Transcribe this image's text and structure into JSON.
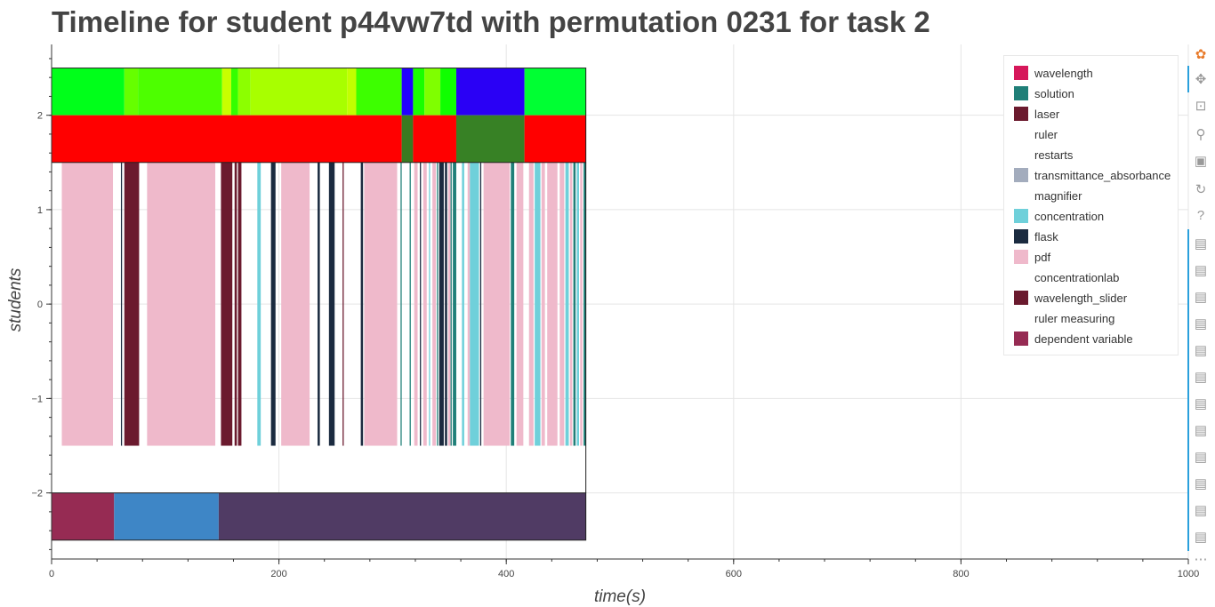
{
  "chart_data": {
    "type": "timeline",
    "title": "Timeline for student p44vw7td with permutation 0231 for task 2",
    "xlabel": "time(s)",
    "ylabel": "students",
    "xlim": [
      0,
      1000
    ],
    "ylim": [
      -2.7,
      2.75
    ],
    "x_ticks": [
      0,
      200,
      400,
      600,
      800,
      1000
    ],
    "y_ticks": [
      -2,
      -1,
      0,
      1,
      2
    ],
    "y_tick_labels": [
      "−2",
      "−1",
      "0",
      "1",
      "2"
    ],
    "legend": [
      {
        "name": "wavelength",
        "color": "#d6175a"
      },
      {
        "name": "solution",
        "color": "#207f78"
      },
      {
        "name": "laser",
        "color": "#6b1a2e"
      },
      {
        "name": "ruler",
        "color": ""
      },
      {
        "name": "restarts",
        "color": ""
      },
      {
        "name": "transmittance_absorbance",
        "color": "#a3acbd"
      },
      {
        "name": "magnifier",
        "color": ""
      },
      {
        "name": "concentration",
        "color": "#6fd0da"
      },
      {
        "name": "flask",
        "color": "#1b2b40"
      },
      {
        "name": "pdf",
        "color": "#efb9cb"
      },
      {
        "name": "concentrationlab",
        "color": ""
      },
      {
        "name": "wavelength_slider",
        "color": "#6a1a2e"
      },
      {
        "name": "ruler measuring",
        "color": ""
      },
      {
        "name": "dependent variable",
        "color": "#962b53"
      }
    ],
    "rows": [
      {
        "y0": 2.0,
        "y1": 2.5,
        "segments": [
          {
            "x0": 0,
            "x1": 64,
            "color": "#00ff1a"
          },
          {
            "x0": 64,
            "x1": 76,
            "color": "#66ff00"
          },
          {
            "x0": 76,
            "x1": 150,
            "color": "#4dff00"
          },
          {
            "x0": 150,
            "x1": 158,
            "color": "#c8ff00"
          },
          {
            "x0": 158,
            "x1": 164,
            "color": "#33ff00"
          },
          {
            "x0": 164,
            "x1": 175,
            "color": "#8cff00"
          },
          {
            "x0": 175,
            "x1": 260,
            "color": "#a8ff00"
          },
          {
            "x0": 260,
            "x1": 268,
            "color": "#c2ff00"
          },
          {
            "x0": 268,
            "x1": 308,
            "color": "#3dff00"
          },
          {
            "x0": 308,
            "x1": 318,
            "color": "#2200ff"
          },
          {
            "x0": 318,
            "x1": 328,
            "color": "#19ff00"
          },
          {
            "x0": 328,
            "x1": 342,
            "color": "#7fff00"
          },
          {
            "x0": 342,
            "x1": 356,
            "color": "#10ff00"
          },
          {
            "x0": 356,
            "x1": 416,
            "color": "#2a00f5"
          },
          {
            "x0": 416,
            "x1": 470,
            "color": "#00ff33"
          }
        ]
      },
      {
        "y0": 1.5,
        "y1": 2.0,
        "segments": [
          {
            "x0": 0,
            "x1": 308,
            "color": "#ff0000"
          },
          {
            "x0": 308,
            "x1": 318,
            "color": "#3a7a20"
          },
          {
            "x0": 318,
            "x1": 356,
            "color": "#ff0000"
          },
          {
            "x0": 356,
            "x1": 416,
            "color": "#378125"
          },
          {
            "x0": 416,
            "x1": 470,
            "color": "#ff0000"
          }
        ]
      },
      {
        "y0": -1.5,
        "y1": 1.5,
        "segments": [
          {
            "x0": 9,
            "x1": 54,
            "color": "#efb9cb"
          },
          {
            "x0": 61,
            "x1": 62,
            "color": "#1b2b40"
          },
          {
            "x0": 64,
            "x1": 77,
            "color": "#6b1a2e"
          },
          {
            "x0": 84,
            "x1": 144,
            "color": "#efb9cb"
          },
          {
            "x0": 149,
            "x1": 159,
            "color": "#6b1a2e"
          },
          {
            "x0": 161,
            "x1": 163,
            "color": "#6b1a2e"
          },
          {
            "x0": 164,
            "x1": 167,
            "color": "#6b1a2e"
          },
          {
            "x0": 181,
            "x1": 184,
            "color": "#6fd0da"
          },
          {
            "x0": 193,
            "x1": 197,
            "color": "#1b2b40"
          },
          {
            "x0": 202,
            "x1": 227,
            "color": "#efb9cb"
          },
          {
            "x0": 234,
            "x1": 236,
            "color": "#1b2b40"
          },
          {
            "x0": 244,
            "x1": 249,
            "color": "#1b2b40"
          },
          {
            "x0": 256,
            "x1": 257,
            "color": "#6b1a2e"
          },
          {
            "x0": 272,
            "x1": 274,
            "color": "#1b2b40"
          },
          {
            "x0": 275,
            "x1": 276,
            "color": "#6fd0da"
          },
          {
            "x0": 275,
            "x1": 304,
            "color": "#efb9cb"
          },
          {
            "x0": 307,
            "x1": 308,
            "color": "#207f78"
          },
          {
            "x0": 315,
            "x1": 316,
            "color": "#207f78"
          },
          {
            "x0": 319,
            "x1": 322,
            "color": "#efb9cb"
          },
          {
            "x0": 324,
            "x1": 325,
            "color": "#1b2b40"
          },
          {
            "x0": 327,
            "x1": 330,
            "color": "#efb9cb"
          },
          {
            "x0": 332,
            "x1": 333,
            "color": "#6fd0da"
          },
          {
            "x0": 335,
            "x1": 338,
            "color": "#efb9cb"
          },
          {
            "x0": 339,
            "x1": 340,
            "color": "#207f78"
          },
          {
            "x0": 341,
            "x1": 345,
            "color": "#1b2b40"
          },
          {
            "x0": 346,
            "x1": 348,
            "color": "#1b2b40"
          },
          {
            "x0": 349,
            "x1": 351,
            "color": "#efb9cb"
          },
          {
            "x0": 351,
            "x1": 352,
            "color": "#207f78"
          },
          {
            "x0": 353,
            "x1": 356,
            "color": "#207f78"
          },
          {
            "x0": 361,
            "x1": 363,
            "color": "#6fd0da"
          },
          {
            "x0": 366,
            "x1": 368,
            "color": "#efb9cb"
          },
          {
            "x0": 368,
            "x1": 376,
            "color": "#6fd0da"
          },
          {
            "x0": 377,
            "x1": 378,
            "color": "#1b2b40"
          },
          {
            "x0": 380,
            "x1": 403,
            "color": "#efb9cb"
          },
          {
            "x0": 404,
            "x1": 407,
            "color": "#207f78"
          },
          {
            "x0": 409,
            "x1": 415,
            "color": "#efb9cb"
          },
          {
            "x0": 420,
            "x1": 424,
            "color": "#efb9cb"
          },
          {
            "x0": 425,
            "x1": 430,
            "color": "#6fd0da"
          },
          {
            "x0": 431,
            "x1": 434,
            "color": "#efb9cb"
          },
          {
            "x0": 436,
            "x1": 445,
            "color": "#efb9cb"
          },
          {
            "x0": 447,
            "x1": 451,
            "color": "#efb9cb"
          },
          {
            "x0": 452,
            "x1": 455,
            "color": "#6fd0da"
          },
          {
            "x0": 456,
            "x1": 458,
            "color": "#efb9cb"
          },
          {
            "x0": 459,
            "x1": 461,
            "color": "#207f78"
          },
          {
            "x0": 462,
            "x1": 464,
            "color": "#6fd0da"
          },
          {
            "x0": 465,
            "x1": 467,
            "color": "#efb9cb"
          },
          {
            "x0": 468,
            "x1": 470,
            "color": "#207f78"
          }
        ]
      },
      {
        "y0": -2.5,
        "y1": -2.0,
        "segments": [
          {
            "x0": 0,
            "x1": 55,
            "color": "#962b53"
          },
          {
            "x0": 55,
            "x1": 147,
            "color": "#3e86c6"
          },
          {
            "x0": 147,
            "x1": 470,
            "color": "#503b64"
          }
        ]
      }
    ]
  },
  "toolbar": {
    "tools": [
      {
        "name": "bokeh-logo-icon",
        "glyph": "✿",
        "color": "#e87a2a"
      },
      {
        "name": "pan-icon",
        "glyph": "✥",
        "color": "#999999"
      },
      {
        "name": "box-zoom-icon",
        "glyph": "⊡",
        "color": "#999999"
      },
      {
        "name": "wheel-zoom-icon",
        "glyph": "⚲",
        "color": "#999999"
      },
      {
        "name": "save-icon",
        "glyph": "▣",
        "color": "#999999"
      },
      {
        "name": "reset-icon",
        "glyph": "↻",
        "color": "#999999"
      },
      {
        "name": "help-icon",
        "glyph": "?",
        "color": "#999999"
      },
      {
        "name": "hover-icon",
        "glyph": "▤",
        "color": "#999999"
      }
    ],
    "more_label": "⋯"
  }
}
